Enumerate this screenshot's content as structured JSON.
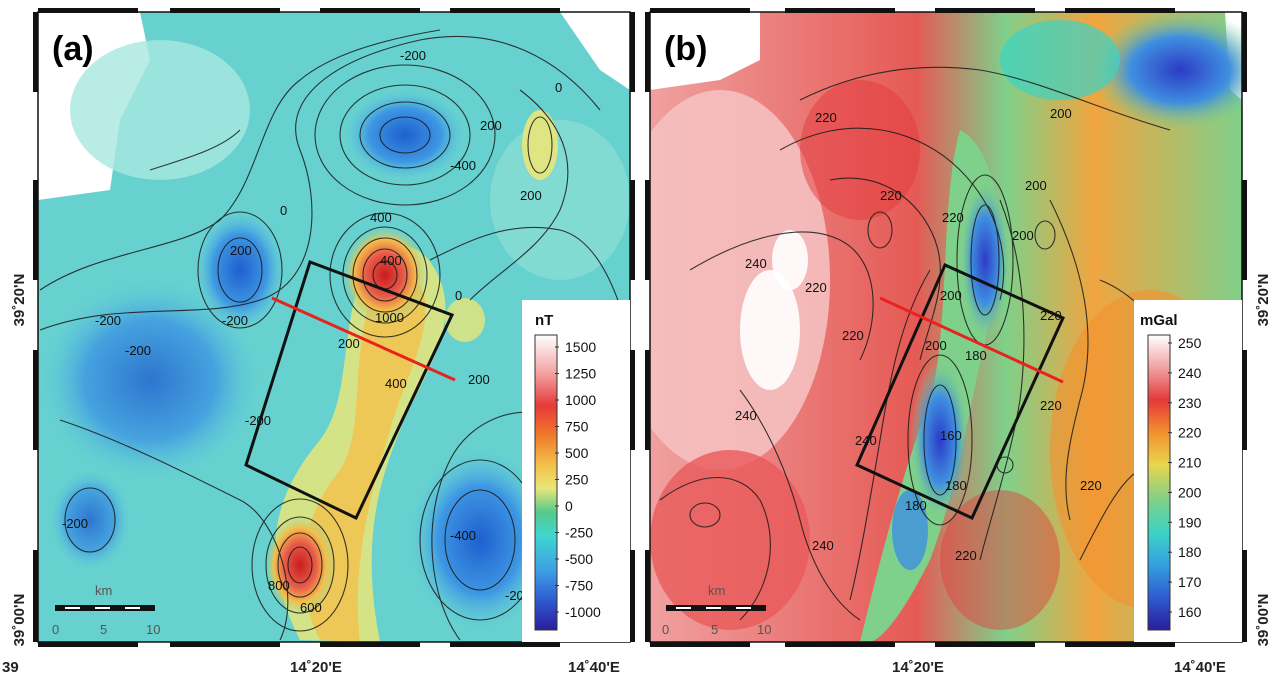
{
  "panels": [
    {
      "id": "a",
      "label": "(a)",
      "colorbar": {
        "unit": "nT",
        "ticks": [
          "1500",
          "1250",
          "1000",
          "750",
          "500",
          "250",
          "0",
          "-250",
          "-500",
          "-750",
          "-1000"
        ],
        "colors": [
          "#ffffff",
          "#f4a9a9",
          "#e63a3a",
          "#f07a2a",
          "#f2c04a",
          "#e9e67a",
          "#58c98a",
          "#3fd6d0",
          "#3d9fe3",
          "#2f59d0",
          "#2a1d9a"
        ]
      },
      "contour_labels": [
        "-200",
        "0",
        "200",
        "-400",
        "200",
        "0",
        "200",
        "400",
        "400",
        "1000",
        "200",
        "400",
        "200",
        "-200",
        "-200",
        "0",
        "-200",
        "-200",
        "-200",
        "-400",
        "-200",
        "600",
        "800"
      ],
      "scalebar": {
        "unit": "km",
        "ticks": [
          "0",
          "5",
          "10"
        ]
      }
    },
    {
      "id": "b",
      "label": "(b)",
      "colorbar": {
        "unit": "mGal",
        "ticks": [
          "250",
          "240",
          "230",
          "220",
          "210",
          "200",
          "190",
          "180",
          "170",
          "160"
        ],
        "colors": [
          "#ffffff",
          "#f2a2a2",
          "#e4393b",
          "#f3912e",
          "#e9d54d",
          "#7fd08a",
          "#3cd3c5",
          "#35a0df",
          "#2f5bd1",
          "#2a1d9a"
        ]
      },
      "contour_labels": [
        "220",
        "200",
        "200",
        "220",
        "220",
        "200",
        "240",
        "220",
        "220",
        "240",
        "220",
        "240",
        "240",
        "220",
        "220",
        "220",
        "180",
        "180",
        "160",
        "180",
        "200",
        "200"
      ],
      "scalebar": {
        "unit": "km",
        "ticks": [
          "0",
          "5",
          "10"
        ]
      }
    }
  ],
  "axes": {
    "lat_top": "39˚20'N",
    "lat_bottom": "39˚00'N",
    "lon_left": "39",
    "lon_mid": "14˚20'E",
    "lon_right": "14˚40'E"
  }
}
